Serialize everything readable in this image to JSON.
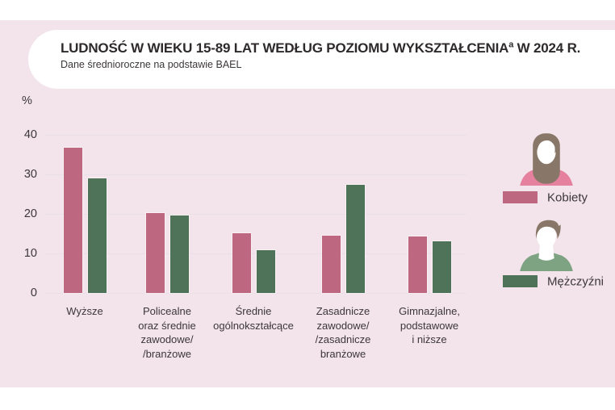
{
  "header": {
    "title": "LUDNOŚĆ W WIEKU 15-89 LAT WEDŁUG POZIOMU WYKSZTAŁCENIA",
    "title_superscript": "a",
    "title_suffix": " W 2024 R.",
    "subtitle": "Dane średnioroczne na podstawie BAEL"
  },
  "chart_data": {
    "type": "bar",
    "unit_label": "%",
    "categories": [
      [
        "Wyższe"
      ],
      [
        "Policealne",
        "oraz średnie",
        "zawodowe/",
        "/branżowe"
      ],
      [
        "Średnie",
        "ogólnokształcące"
      ],
      [
        "Zasadnicze",
        "zawodowe/",
        "/zasadnicze",
        "branżowe"
      ],
      [
        "Gimnazjalne,",
        "podstawowe",
        "i niższe"
      ]
    ],
    "series": [
      {
        "name": "Kobiety",
        "color": "#bd6880",
        "values": [
          36.8,
          20.3,
          15.2,
          14.5,
          14.2
        ]
      },
      {
        "name": "Mężczyźni",
        "color": "#4e7358",
        "values": [
          29.0,
          19.6,
          10.8,
          27.4,
          13.1
        ]
      }
    ],
    "ylim": [
      0,
      40
    ],
    "yticks": [
      0,
      10,
      20,
      30,
      40
    ],
    "grid": true,
    "legend_position": "right"
  },
  "legend": {
    "items": [
      {
        "label": "Kobiety",
        "color": "#bd6880",
        "avatar": "female"
      },
      {
        "label": "Mężczyźni",
        "color": "#4e7358",
        "avatar": "male"
      }
    ]
  },
  "colors": {
    "background": "#f2e4ea",
    "card": "#ffffff",
    "gridline": "#e8e0e5",
    "text": "#3c373a",
    "kobiety_bar": "#bd6880",
    "mezczyzni_bar": "#4e7358"
  }
}
